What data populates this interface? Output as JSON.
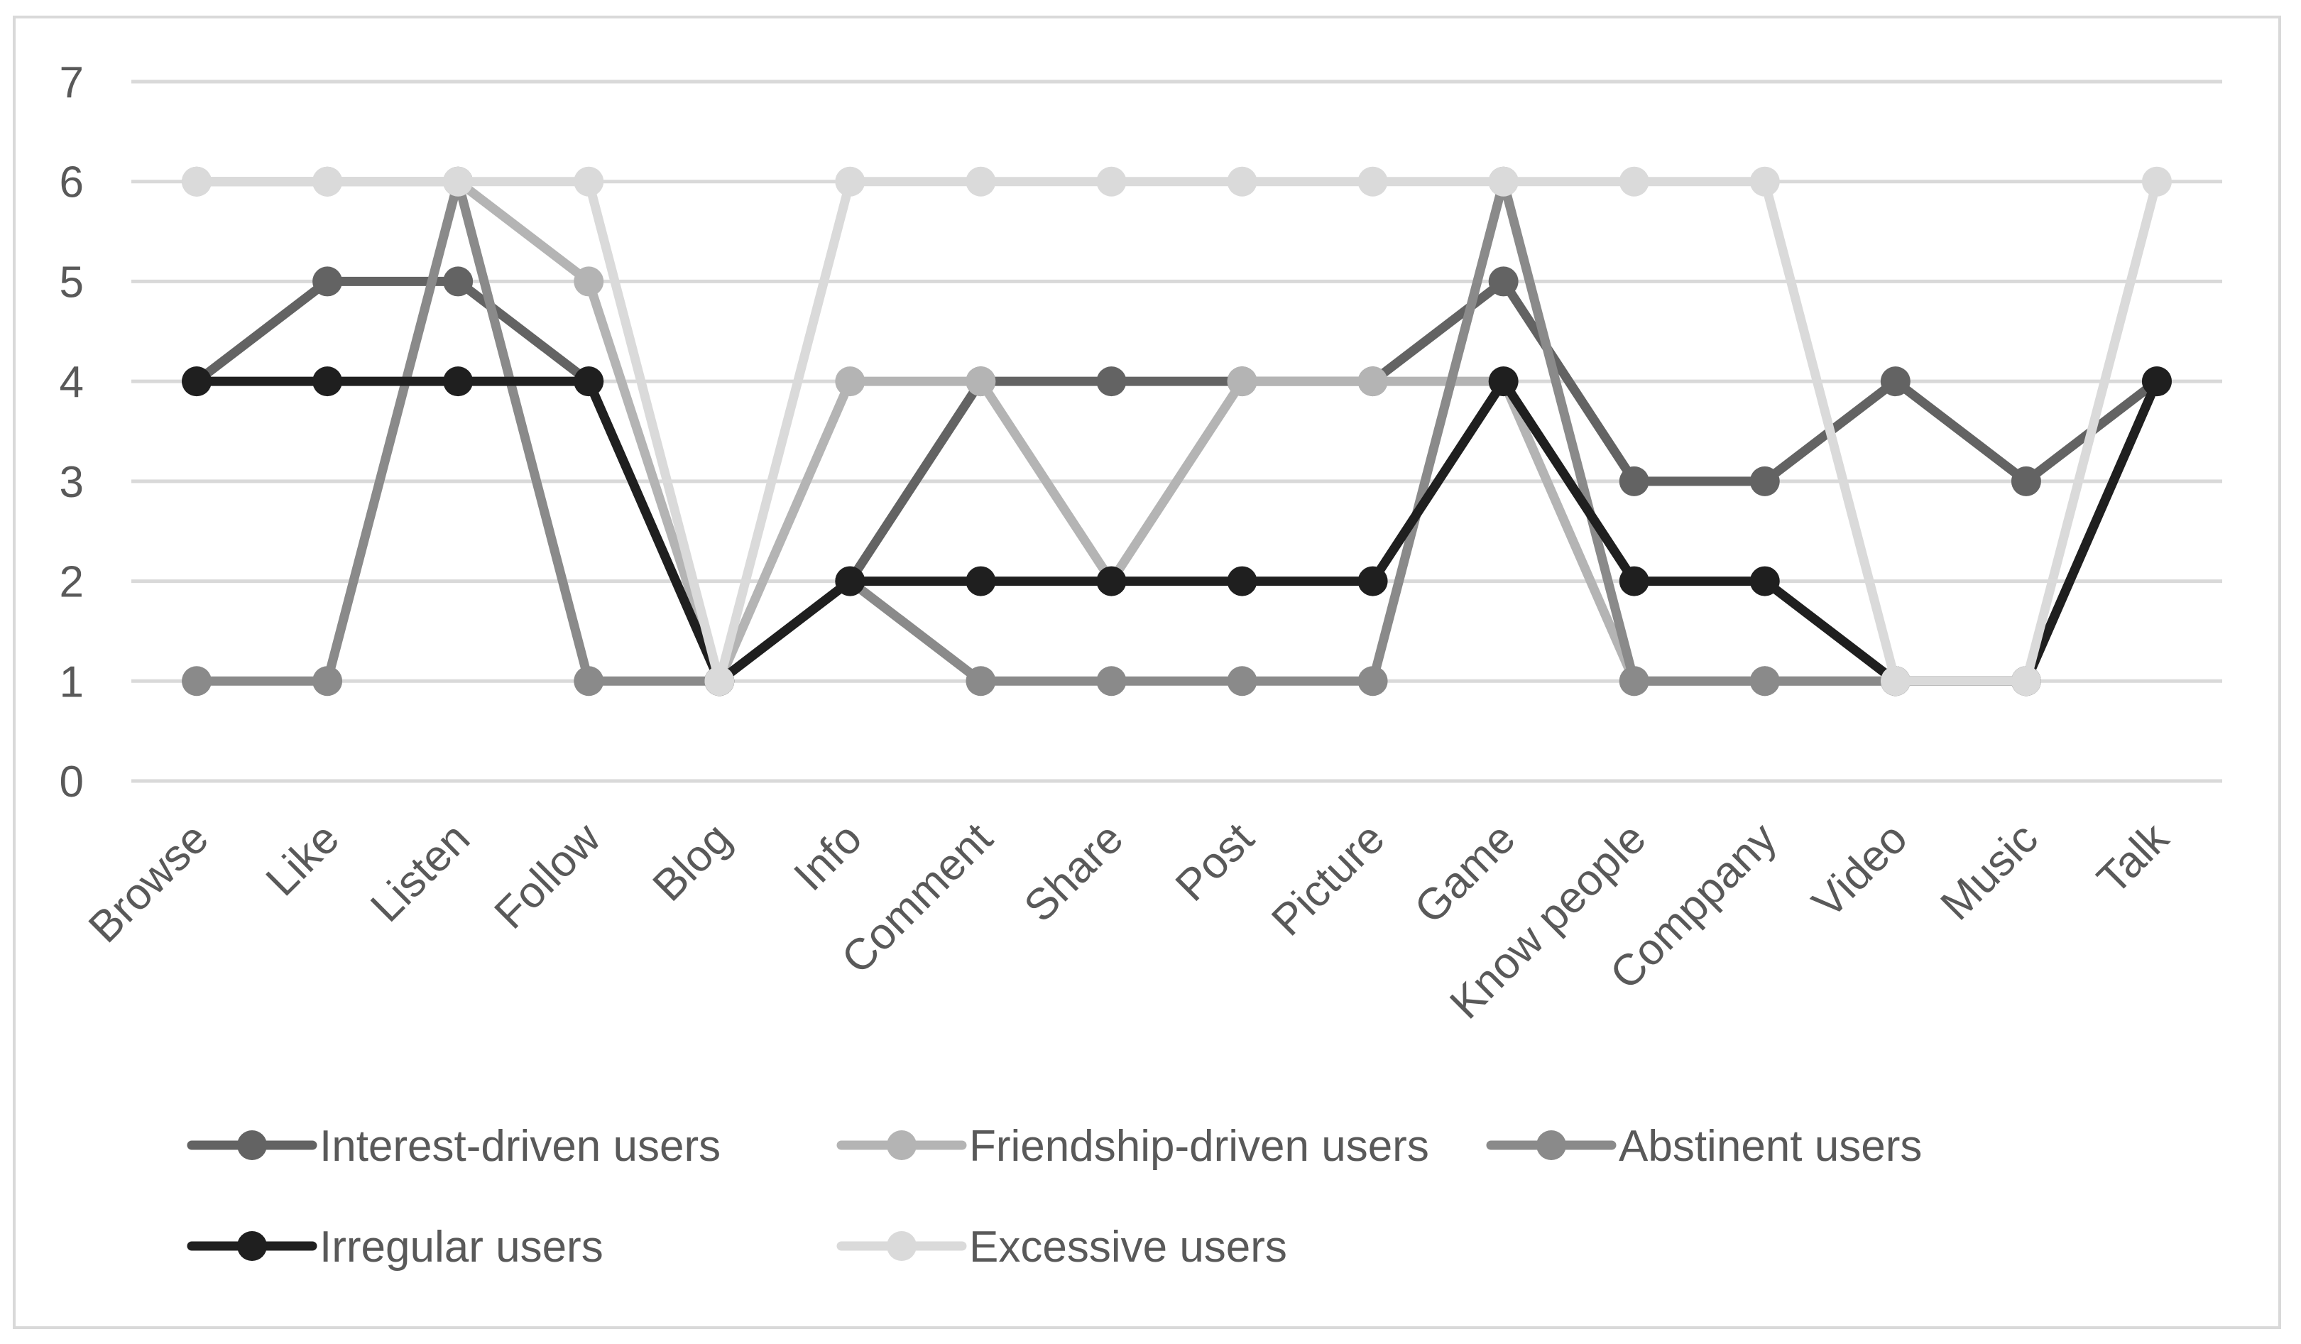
{
  "chart_data": {
    "type": "line",
    "title": "",
    "xlabel": "",
    "ylabel": "",
    "ylim": [
      0,
      7
    ],
    "yticks": [
      0,
      1,
      2,
      3,
      4,
      5,
      6,
      7
    ],
    "grid": true,
    "legend_position": "bottom",
    "categories": [
      "Browse",
      "Like",
      "Listen",
      "Follow",
      "Blog",
      "Info",
      "Comment",
      "Share",
      "Post",
      "Picture",
      "Game",
      "Know people",
      "Comppany",
      "Video",
      "Music",
      "Talk"
    ],
    "series": [
      {
        "name": "Interest-driven users",
        "color": "#636363",
        "values": [
          4,
          5,
          5,
          4,
          1,
          2,
          4,
          4,
          4,
          4,
          5,
          3,
          3,
          4,
          3,
          4
        ]
      },
      {
        "name": "Friendship-driven users",
        "color": "#b4b4b4",
        "values": [
          6,
          6,
          6,
          5,
          1,
          4,
          4,
          2,
          4,
          4,
          4,
          1,
          1,
          1,
          1,
          4
        ]
      },
      {
        "name": "Abstinent users",
        "color": "#8a8a8a",
        "values": [
          1,
          1,
          6,
          1,
          1,
          2,
          1,
          1,
          1,
          1,
          6,
          1,
          1,
          1,
          1,
          4
        ]
      },
      {
        "name": "Irregular users",
        "color": "#1f1f1f",
        "values": [
          4,
          4,
          4,
          4,
          1,
          2,
          2,
          2,
          2,
          2,
          4,
          2,
          2,
          1,
          1,
          4
        ]
      },
      {
        "name": "Excessive users",
        "color": "#dadada",
        "values": [
          6,
          6,
          6,
          6,
          1,
          6,
          6,
          6,
          6,
          6,
          6,
          6,
          6,
          1,
          1,
          6
        ]
      }
    ]
  }
}
